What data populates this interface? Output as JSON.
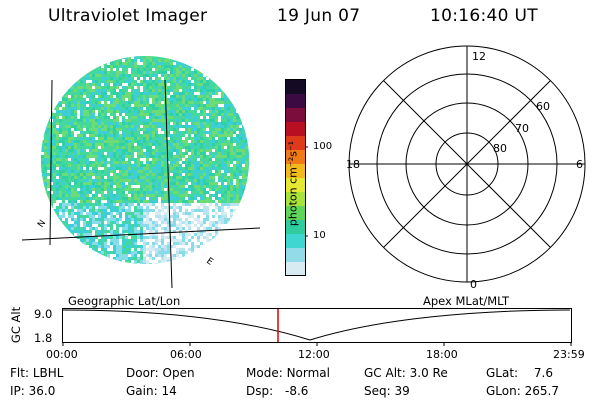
{
  "header": {
    "instrument": "Ultraviolet Imager",
    "date": "19 Jun 07",
    "time": "10:16:40 UT"
  },
  "image_panel": {
    "corner_labels": [
      "N",
      "E"
    ]
  },
  "colorbar": {
    "unit_label": "photon cm⁻²s⁻¹",
    "ticks": [
      {
        "label": "100",
        "value": 100
      },
      {
        "label": "10",
        "value": 10
      }
    ],
    "colors": [
      "#d8eaf2",
      "#93dbe8",
      "#3fd6d2",
      "#2ecc9f",
      "#5fd65a",
      "#a8e23a",
      "#e5e832",
      "#f2b91e",
      "#ef7a17",
      "#e03a1d",
      "#b80f23",
      "#7a0d3c",
      "#3b0a42",
      "#140a24"
    ]
  },
  "polar_plot": {
    "mlt_labels": {
      "top": "12",
      "bottom": "0",
      "left": "18",
      "right": "6"
    },
    "mlat_labels": [
      "60",
      "70",
      "80"
    ]
  },
  "timeline": {
    "left_axis_label": "GC Alt",
    "ymax_label": "9.0",
    "ymin_label": "1.8",
    "left_title": "Geographic Lat/Lon",
    "right_title": "Apex MLat/MLT",
    "time_ticks": [
      "00:00",
      "06:00",
      "12:00",
      "18:00",
      "23:59"
    ],
    "current_marker_time": "10:16:40",
    "marker_color": "#e00000"
  },
  "info": {
    "flt_label": "Flt:",
    "flt_value": "LBHL",
    "ip_label": "IP:",
    "ip_value": "36.0",
    "door_label": "Door:",
    "door_value": "Open",
    "gain_label": "Gain:",
    "gain_value": "14",
    "mode_label": "Mode:",
    "mode_value": "Normal",
    "dsp_label": "Dsp:",
    "dsp_value": "-8.6",
    "gcalt_label": "GC Alt:",
    "gcalt_value": "3.0 Re",
    "seq_label": "Seq:",
    "seq_value": "39",
    "glat_label": "GLat:",
    "glat_value": "7.6",
    "glon_label": "GLon:",
    "glon_value": "265.7"
  }
}
